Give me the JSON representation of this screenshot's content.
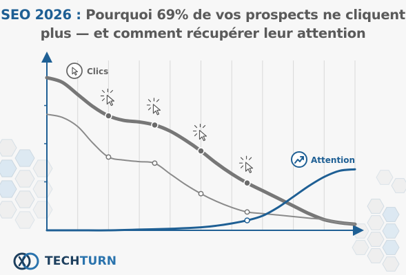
{
  "title": {
    "prefix": "SEO 2026 :",
    "line1": "Pourquoi 69% de vos prospects ne cliquent",
    "line2": "plus — et comment récupérer leur attention"
  },
  "brand": {
    "part1": "TECH",
    "part2": "TURN"
  },
  "colors": {
    "accent": "#1e5f94",
    "clics": "#777777",
    "secondary": "#8a8a8a",
    "axis": "#1e5f94",
    "grid": "#d8d8d8",
    "title": "#5a5a5a"
  },
  "icons": {
    "clics": "cursor-click-icon",
    "attention": "trending-up-icon",
    "brand": "techturn-logo-icon"
  },
  "chart_data": {
    "type": "line",
    "title": "",
    "xlabel": "",
    "ylabel": "",
    "xlim": [
      0,
      10
    ],
    "ylim": [
      0,
      100
    ],
    "grid": true,
    "series": [
      {
        "name": "Clics",
        "x": [
          0,
          0.5,
          1,
          1.5,
          2,
          2.5,
          3,
          3.5,
          4,
          4.5,
          5,
          5.5,
          6,
          6.5,
          7,
          7.5,
          8,
          8.5,
          9,
          9.5,
          10
        ],
        "y": [
          100,
          97,
          89,
          81,
          75,
          72,
          71,
          69,
          65,
          59,
          52,
          44,
          37,
          31,
          26,
          21,
          16,
          11,
          7,
          5,
          4
        ],
        "markers_x": [
          2,
          3.5,
          5,
          6.5
        ]
      },
      {
        "name": "",
        "x": [
          0,
          0.5,
          1,
          1.5,
          2,
          2.5,
          3,
          3.5,
          4,
          4.5,
          5,
          5.5,
          6,
          6.5,
          7,
          7.5,
          8,
          8.5,
          9,
          9.5,
          10
        ],
        "y": [
          76,
          74,
          68,
          57,
          48,
          46,
          45,
          44,
          37,
          30,
          24,
          19,
          15,
          12,
          11,
          10,
          9,
          8,
          7,
          5,
          4
        ],
        "markers_x": [
          2,
          3.5,
          5,
          6.5
        ]
      },
      {
        "name": "Attention",
        "x": [
          0,
          1,
          2,
          3,
          4,
          5,
          5.5,
          6,
          6.5,
          7,
          7.5,
          8,
          8.5,
          9,
          9.5,
          10
        ],
        "y": [
          0,
          0,
          0,
          0.5,
          1,
          2,
          3,
          4.5,
          6.5,
          9.5,
          15,
          22,
          29,
          35,
          39,
          40
        ],
        "markers_x": [
          6.5
        ]
      }
    ]
  }
}
